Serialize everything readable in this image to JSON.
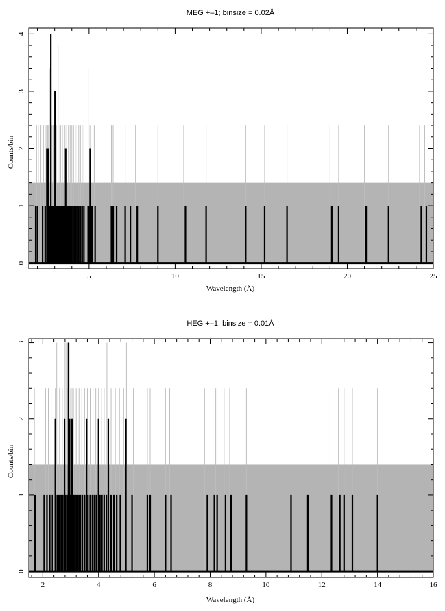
{
  "chart_data": [
    {
      "type": "bar",
      "title": "MEG +–1; binsize = 0.02Å",
      "xlabel": "Wavelength (Å)",
      "ylabel": "Counts/bin",
      "xlim": [
        1.5,
        25
      ],
      "ylim": [
        -0.1,
        4.1
      ],
      "xticks": [
        5,
        10,
        15,
        20,
        25
      ],
      "yticks": [
        0,
        1,
        2,
        3,
        4
      ],
      "grid": false,
      "legend": "none",
      "series": [
        {
          "style": "gray-band",
          "color": "#b4b4b4",
          "x": [
            1.5,
            25.0
          ],
          "values": [
            1.4,
            1.4
          ]
        },
        {
          "style": "gray-spikes",
          "color": "#bdbdbd",
          "x": [
            1.95,
            2.05,
            2.2,
            2.35,
            2.5,
            2.6,
            2.65,
            2.7,
            2.8,
            2.85,
            2.95,
            3.0,
            3.1,
            3.2,
            3.3,
            3.35,
            3.45,
            3.55,
            3.6,
            3.7,
            3.8,
            3.9,
            4.0,
            4.1,
            4.2,
            4.3,
            4.4,
            4.5,
            4.6,
            4.7,
            4.95,
            5.05,
            5.3,
            6.3,
            6.4,
            7.1,
            7.7,
            9.0,
            10.5,
            11.8,
            14.1,
            15.2,
            16.5,
            19.0,
            19.5,
            21.0,
            22.4,
            24.2,
            24.5
          ],
          "values": [
            2.4,
            2.4,
            2.4,
            2.4,
            2.4,
            2.4,
            2.4,
            3.4,
            2.4,
            2.4,
            2.4,
            2.4,
            2.4,
            3.8,
            2.4,
            2.4,
            2.4,
            3.0,
            2.4,
            2.4,
            2.4,
            2.4,
            2.4,
            2.4,
            2.4,
            2.4,
            2.4,
            2.4,
            2.4,
            2.4,
            3.4,
            2.4,
            2.4,
            2.4,
            2.4,
            2.4,
            2.4,
            2.4,
            2.4,
            2.4,
            2.4,
            2.4,
            2.4,
            2.4,
            2.4,
            2.4,
            2.4,
            2.4,
            2.4
          ]
        },
        {
          "style": "black-counts",
          "color": "#000000",
          "x": [
            1.9,
            2.0,
            2.3,
            2.45,
            2.55,
            2.62,
            2.66,
            2.72,
            2.78,
            2.84,
            2.9,
            2.96,
            3.02,
            3.1,
            3.16,
            3.22,
            3.28,
            3.34,
            3.4,
            3.46,
            3.52,
            3.58,
            3.64,
            3.7,
            3.76,
            3.82,
            3.88,
            3.94,
            4.0,
            4.08,
            4.16,
            4.24,
            4.32,
            4.4,
            4.5,
            4.6,
            4.7,
            4.95,
            5.02,
            5.06,
            5.12,
            5.2,
            5.35,
            6.3,
            6.4,
            6.6,
            7.1,
            7.4,
            7.8,
            9.0,
            10.6,
            11.8,
            14.1,
            15.2,
            16.5,
            19.1,
            19.5,
            21.1,
            22.4,
            24.3,
            24.6
          ],
          "values": [
            1,
            1,
            1,
            1,
            2,
            2,
            1,
            1,
            4,
            1,
            1,
            1,
            3,
            1,
            1,
            1,
            1,
            1,
            1,
            1,
            1,
            1,
            2,
            1,
            1,
            1,
            1,
            1,
            1,
            1,
            1,
            1,
            1,
            1,
            1,
            1,
            1,
            1,
            1,
            2,
            1,
            1,
            1,
            1,
            1,
            1,
            1,
            1,
            1,
            1,
            1,
            1,
            1,
            1,
            1,
            1,
            1,
            1,
            1,
            1,
            1
          ]
        }
      ]
    },
    {
      "type": "bar",
      "title": "HEG +–1; binsize = 0.01Å",
      "xlabel": "Wavelength (Å)",
      "ylabel": "Counts/bin",
      "xlim": [
        1.5,
        16
      ],
      "ylim": [
        -0.08,
        3.05
      ],
      "xticks": [
        2,
        4,
        6,
        8,
        10,
        12,
        14,
        16
      ],
      "yticks": [
        0,
        1,
        2,
        3
      ],
      "grid": false,
      "legend": "none",
      "series": [
        {
          "style": "gray-band",
          "color": "#b4b4b4",
          "x": [
            1.5,
            16.0
          ],
          "values": [
            1.4,
            1.4
          ]
        },
        {
          "style": "gray-spikes",
          "color": "#bdbdbd",
          "x": [
            1.7,
            2.1,
            2.2,
            2.3,
            2.45,
            2.5,
            2.6,
            2.7,
            2.8,
            2.85,
            2.9,
            2.95,
            3.0,
            3.05,
            3.1,
            3.2,
            3.3,
            3.4,
            3.5,
            3.6,
            3.7,
            3.8,
            3.9,
            4.0,
            4.1,
            4.2,
            4.3,
            4.45,
            4.6,
            4.75,
            4.9,
            5.0,
            5.25,
            5.75,
            5.85,
            6.4,
            6.55,
            7.8,
            8.1,
            8.2,
            8.5,
            8.7,
            9.3,
            10.9,
            12.3,
            12.6,
            12.8,
            13.1,
            14.0
          ],
          "values": [
            2.4,
            2.4,
            2.4,
            2.4,
            2.4,
            3.0,
            2.4,
            2.4,
            3.0,
            3.0,
            2.4,
            3.0,
            2.4,
            2.4,
            2.4,
            2.4,
            2.4,
            2.4,
            2.4,
            2.4,
            2.4,
            2.4,
            2.4,
            2.4,
            2.4,
            2.4,
            3.0,
            2.4,
            2.4,
            2.4,
            2.4,
            3.0,
            2.4,
            2.4,
            2.4,
            2.4,
            2.4,
            2.4,
            2.4,
            2.4,
            2.4,
            2.4,
            2.4,
            2.4,
            2.4,
            2.4,
            2.4,
            2.4,
            2.4
          ]
        },
        {
          "style": "black-counts",
          "color": "#000000",
          "x": [
            1.72,
            2.05,
            2.15,
            2.25,
            2.35,
            2.45,
            2.52,
            2.58,
            2.66,
            2.72,
            2.78,
            2.82,
            2.88,
            2.92,
            2.96,
            3.0,
            3.05,
            3.1,
            3.15,
            3.2,
            3.25,
            3.3,
            3.35,
            3.42,
            3.5,
            3.57,
            3.62,
            3.7,
            3.78,
            3.85,
            3.92,
            4.0,
            4.05,
            4.12,
            4.2,
            4.28,
            4.35,
            4.45,
            4.55,
            4.65,
            4.78,
            4.98,
            5.2,
            5.75,
            5.85,
            6.4,
            6.6,
            7.9,
            8.15,
            8.25,
            8.55,
            8.75,
            9.3,
            10.9,
            11.5,
            12.35,
            12.65,
            12.8,
            13.1,
            14.0
          ],
          "values": [
            1,
            1,
            1,
            1,
            1,
            2,
            1,
            1,
            1,
            1,
            2,
            1,
            1,
            3,
            2,
            1,
            2,
            1,
            1,
            1,
            1,
            1,
            1,
            1,
            1,
            2,
            1,
            1,
            1,
            1,
            1,
            2,
            1,
            1,
            1,
            1,
            2,
            1,
            1,
            1,
            1,
            2,
            1,
            1,
            1,
            1,
            1,
            1,
            1,
            1,
            1,
            1,
            1,
            1,
            1,
            1,
            1,
            1,
            1,
            1
          ]
        }
      ]
    }
  ]
}
